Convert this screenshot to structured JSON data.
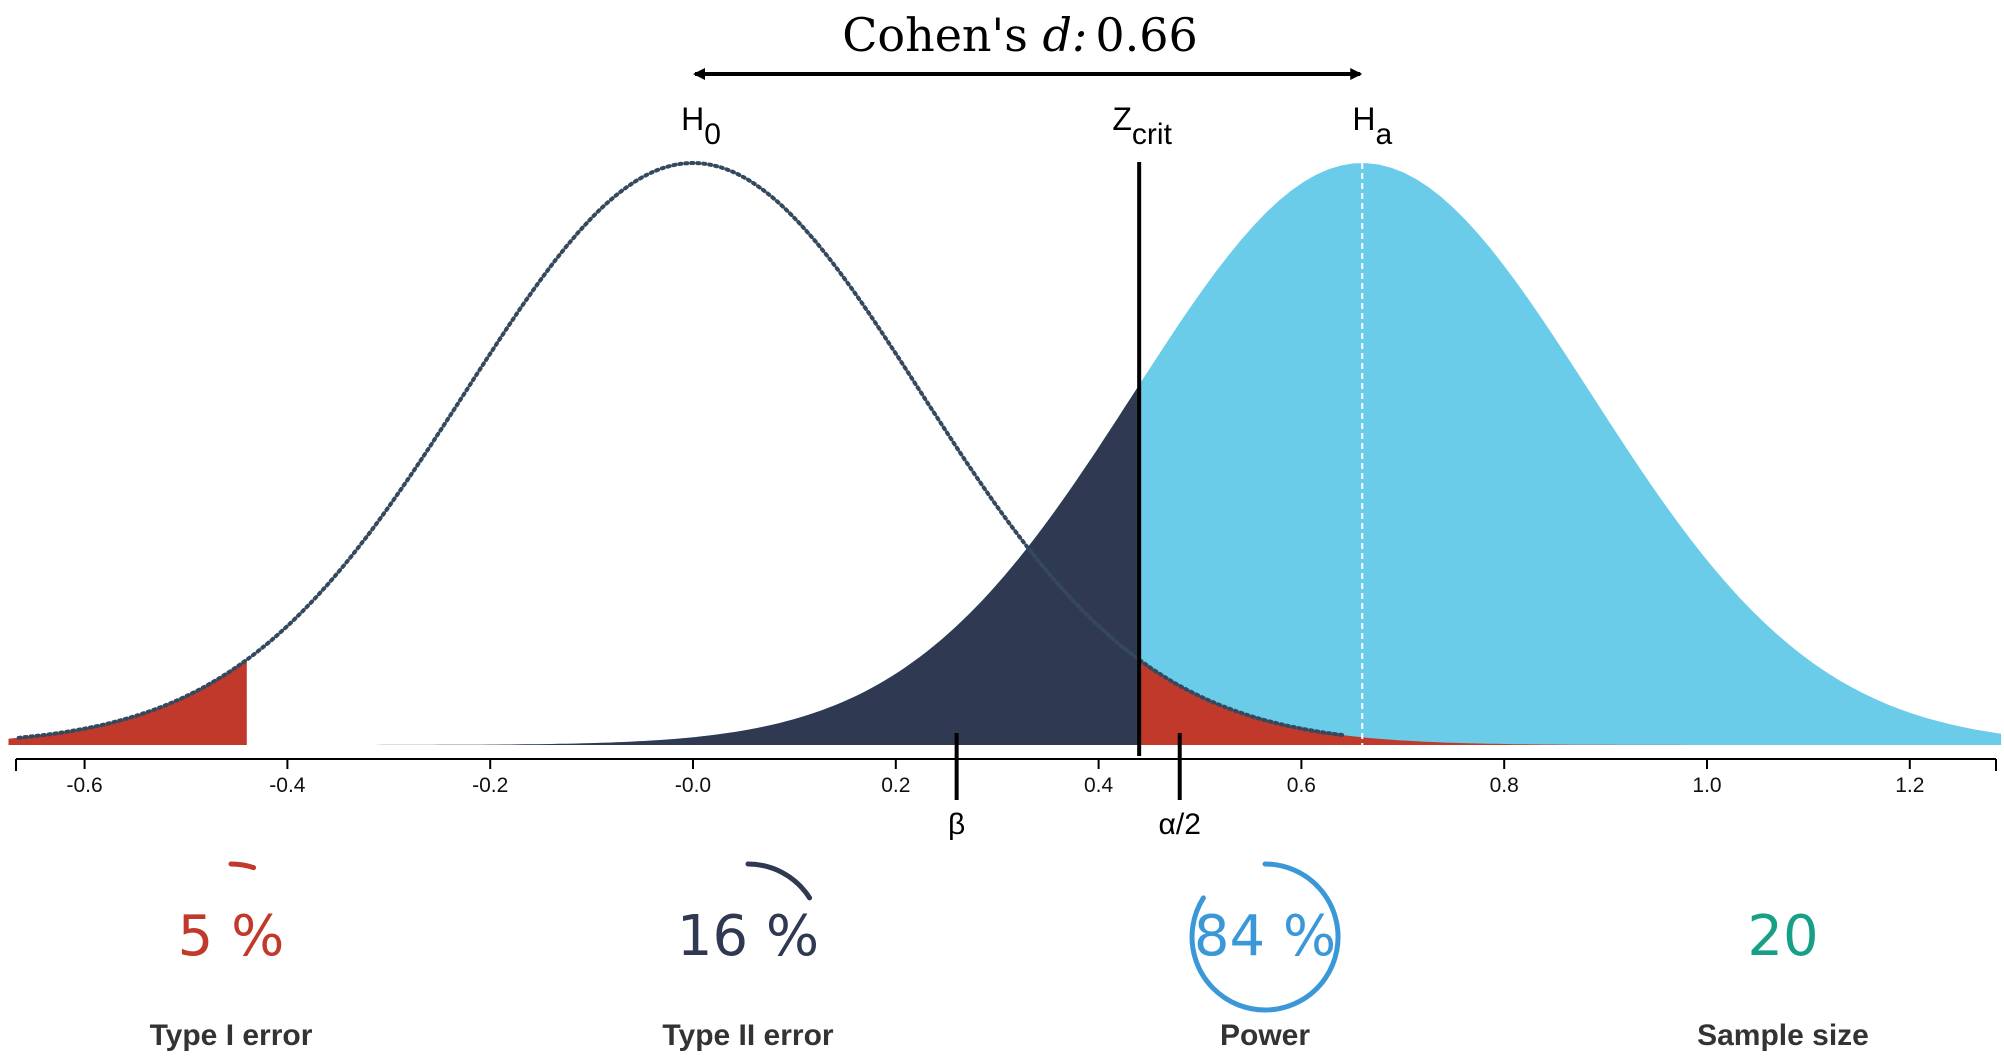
{
  "chart_data": {
    "type": "area",
    "title_prefix": "Cohen's ",
    "title_symbol": "d:",
    "title_value": "0.66",
    "effect_size": 0.66,
    "sd": 0.2245,
    "critical_z": 0.44,
    "xlim": [
      -0.675,
      1.29
    ],
    "x_ticks": [
      -0.6,
      -0.4,
      -0.2,
      0.0,
      0.2,
      0.4,
      0.6,
      0.8,
      1.0,
      1.2
    ],
    "x_tick_labels": [
      "-0.6",
      "-0.4",
      "-0.2",
      "-0.0",
      "0.2",
      "0.4",
      "0.6",
      "0.8",
      "1.0",
      "1.2"
    ],
    "series": [
      {
        "name": "H0",
        "label_main": "H",
        "label_sub": "0",
        "mean": 0.0
      },
      {
        "name": "Ha",
        "label_main": "H",
        "label_sub": "a",
        "mean": 0.66
      }
    ],
    "critical_label_main": "Z",
    "critical_label_sub": "crit",
    "beta_marker": {
      "label": "β",
      "x": 0.26
    },
    "alpha_marker": {
      "label": "α/2",
      "x": 0.48
    },
    "colors": {
      "h0_line": "#34495e",
      "ha_fill": "#6acce8",
      "beta_fill": "#2f3a52",
      "alpha_fill": "#c0392b",
      "power": "#3a98d8",
      "sample": "#17a085"
    }
  },
  "stats": [
    {
      "value": "5 %",
      "label": "Type I error",
      "fraction": 0.05,
      "color": "#c0392b"
    },
    {
      "value": "16 %",
      "label": "Type II error",
      "fraction": 0.16,
      "color": "#2f3a52"
    },
    {
      "value": "84 %",
      "label": "Power",
      "fraction": 0.84,
      "color": "#3a98d8"
    },
    {
      "value": "20",
      "label": "Sample size",
      "color": "#17a085"
    }
  ]
}
